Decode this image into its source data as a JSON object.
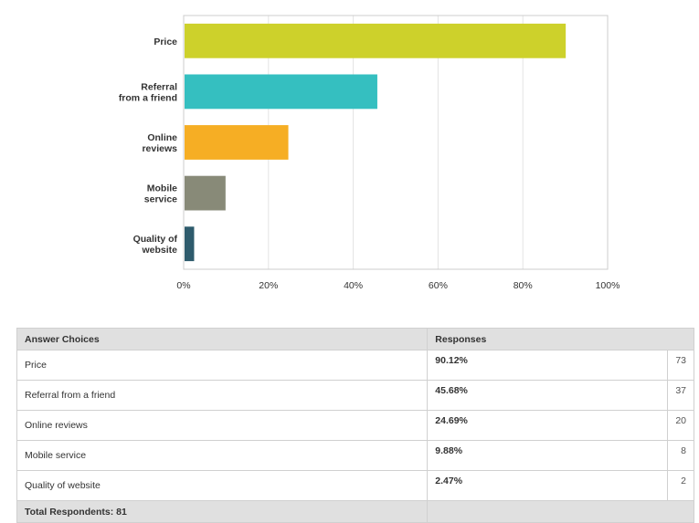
{
  "chart_data": {
    "type": "bar",
    "orientation": "horizontal",
    "categories": [
      [
        "Price"
      ],
      [
        "Referral",
        "from a friend"
      ],
      [
        "Online",
        "reviews"
      ],
      [
        "Mobile",
        "service"
      ],
      [
        "Quality of",
        "website"
      ]
    ],
    "values": [
      90.12,
      45.68,
      24.69,
      9.88,
      2.47
    ],
    "colors": [
      "#cdd12b",
      "#35bfc0",
      "#f6ae24",
      "#888a78",
      "#2e5b6c"
    ],
    "xlim": [
      0,
      100
    ],
    "xticks": [
      "0%",
      "20%",
      "40%",
      "60%",
      "80%",
      "100%"
    ],
    "xlabel": "",
    "ylabel": "",
    "title": "",
    "grid": true
  },
  "table": {
    "headers": [
      "Answer Choices",
      "Responses"
    ],
    "rows": [
      {
        "choice": "Price",
        "percent": "90.12%",
        "count": "73"
      },
      {
        "choice": "Referral from a friend",
        "percent": "45.68%",
        "count": "37"
      },
      {
        "choice": "Online reviews",
        "percent": "24.69%",
        "count": "20"
      },
      {
        "choice": "Mobile service",
        "percent": "9.88%",
        "count": "8"
      },
      {
        "choice": "Quality of website",
        "percent": "2.47%",
        "count": "2"
      }
    ],
    "footer": "Total Respondents: 81"
  }
}
